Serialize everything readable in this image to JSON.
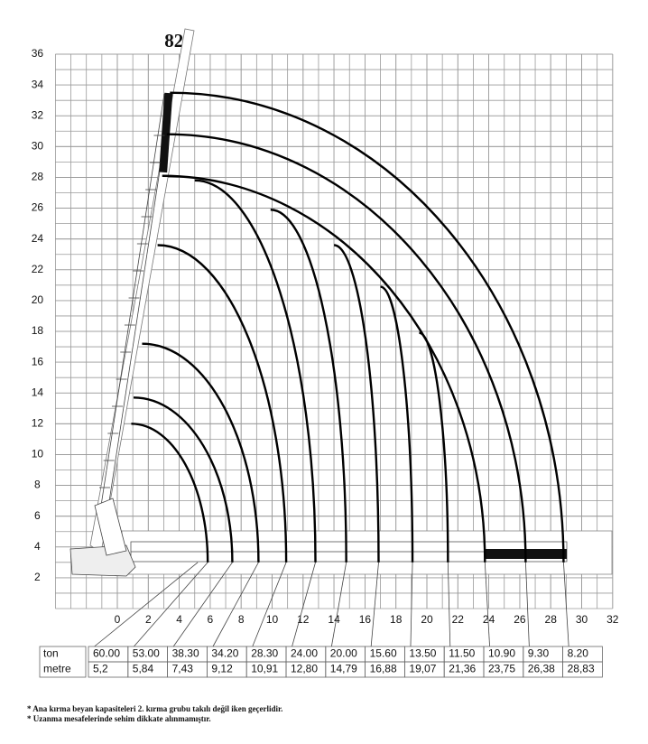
{
  "chart_data": {
    "type": "load-chart",
    "title": "82°",
    "xlim": [
      -4,
      32
    ],
    "ylim": [
      0,
      36
    ],
    "xticks": [
      0,
      2,
      4,
      6,
      8,
      10,
      12,
      14,
      16,
      18,
      20,
      22,
      24,
      26,
      28,
      30,
      32
    ],
    "yticks": [
      2,
      4,
      6,
      8,
      10,
      12,
      14,
      16,
      18,
      20,
      22,
      24,
      26,
      28,
      30,
      32,
      34,
      36
    ],
    "grid": true,
    "series": [
      {
        "name": "ton",
        "color": "#000000",
        "values": [
          60,
          53,
          38.3,
          34.2,
          28.3,
          24,
          20,
          15.6,
          13.5,
          11.5,
          10.9,
          9.3,
          8.2
        ],
        "value_labels": [
          "60.00",
          "53.00",
          "38.30",
          "34.20",
          "28.30",
          "24.00",
          "20.00",
          "15.60",
          "13.50",
          "11.50",
          "10.90",
          "9.30",
          "8.20"
        ]
      },
      {
        "name": "metre",
        "color": "#000000",
        "values": [
          5.2,
          5.84,
          7.43,
          9.12,
          10.91,
          12.8,
          14.79,
          16.88,
          19.07,
          21.36,
          23.75,
          26.38,
          28.83
        ],
        "value_labels": [
          "5,2",
          "5,84",
          "7,43",
          "9,12",
          "10,91",
          "12,80",
          "14,79",
          "16,88",
          "19,07",
          "21,36",
          "23,75",
          "26,38",
          "28,83"
        ]
      }
    ]
  },
  "notes": [
    "* Ana kırma beyan kapasiteleri 2. kırma grubu takılı değil iken geçerlidir.",
    "* Uzanma mesafelerinde sehim dikkate alınmamıştır."
  ]
}
